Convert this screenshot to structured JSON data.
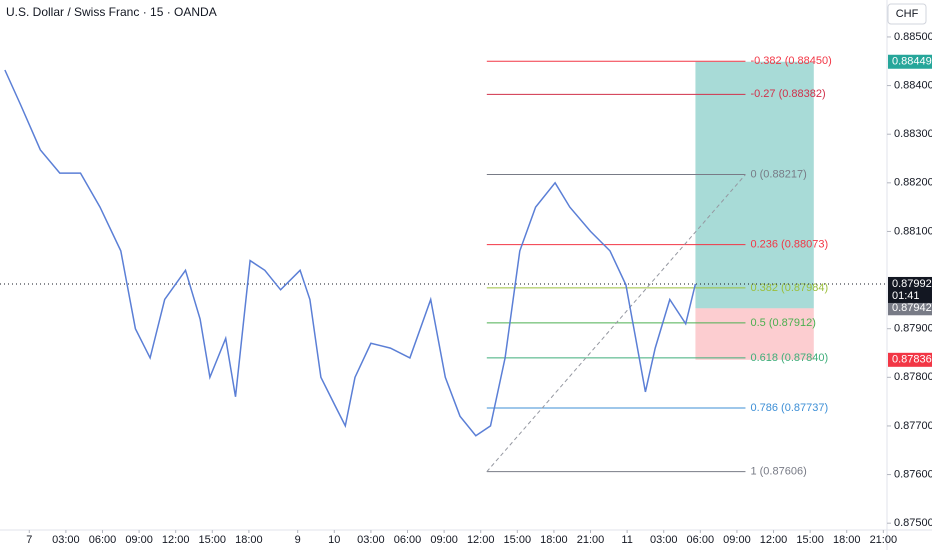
{
  "chart_data": {
    "type": "line",
    "title": "U.S. Dollar / Swiss Franc · 15 · OANDA",
    "currency": "CHF",
    "color": "#5b7fd6",
    "x": [
      -2.0,
      -0.7,
      0.9,
      2.5,
      4.2,
      5.8,
      7.5,
      8.7,
      9.9,
      11.1,
      12.8,
      14.0,
      14.8,
      16.1,
      16.9,
      18.1,
      19.3,
      20.6,
      22.2,
      23.0,
      23.9,
      25.1,
      25.9,
      26.7,
      28.0,
      29.6,
      31.2,
      32.9,
      34.1,
      35.3,
      36.6,
      37.8,
      39.0,
      40.2,
      41.5,
      43.1,
      44.3,
      46.0,
      47.6,
      48.9,
      49.7,
      50.5,
      51.3,
      52.5,
      53.8,
      54.6
    ],
    "values": [
      0.88432,
      0.8836,
      0.88268,
      0.8822,
      0.8822,
      0.8815,
      0.8806,
      0.879,
      0.8784,
      0.8796,
      0.8802,
      0.8792,
      0.878,
      0.8788,
      0.8776,
      0.8804,
      0.8802,
      0.8798,
      0.8802,
      0.8796,
      0.878,
      0.8774,
      0.877,
      0.878,
      0.8787,
      0.8786,
      0.8784,
      0.8796,
      0.878,
      0.8772,
      0.8768,
      0.877,
      0.8784,
      0.8806,
      0.8815,
      0.882,
      0.8815,
      0.881,
      0.8806,
      0.8799,
      0.8788,
      0.8777,
      0.8786,
      0.8796,
      0.8791,
      0.87992
    ],
    "xlim": [
      -2.4,
      70.3
    ],
    "ylim": [
      0.87486,
      0.88576
    ],
    "xticks": [
      {
        "value": 0,
        "label": "7"
      },
      {
        "value": 3,
        "label": "03:00"
      },
      {
        "value": 6,
        "label": "06:00"
      },
      {
        "value": 9,
        "label": "09:00"
      },
      {
        "value": 12,
        "label": "12:00"
      },
      {
        "value": 15,
        "label": "15:00"
      },
      {
        "value": 18,
        "label": "18:00"
      },
      {
        "value": 22,
        "label": "9"
      },
      {
        "value": 25,
        "label": "10"
      },
      {
        "value": 28,
        "label": "03:00"
      },
      {
        "value": 31,
        "label": "06:00"
      },
      {
        "value": 34,
        "label": "09:00"
      },
      {
        "value": 37,
        "label": "12:00"
      },
      {
        "value": 40,
        "label": "15:00"
      },
      {
        "value": 43,
        "label": "18:00"
      },
      {
        "value": 46,
        "label": "21:00"
      },
      {
        "value": 49,
        "label": "11"
      },
      {
        "value": 52,
        "label": "03:00"
      },
      {
        "value": 55,
        "label": "06:00"
      },
      {
        "value": 58,
        "label": "09:00"
      },
      {
        "value": 61,
        "label": "12:00"
      },
      {
        "value": 64,
        "label": "15:00"
      },
      {
        "value": 67,
        "label": "18:00"
      },
      {
        "value": 70,
        "label": "21:00"
      }
    ],
    "yticks": [
      {
        "value": 0.885,
        "label": "0.88500"
      },
      {
        "value": 0.884,
        "label": "0.88400"
      },
      {
        "value": 0.883,
        "label": "0.88300"
      },
      {
        "value": 0.882,
        "label": "0.88200"
      },
      {
        "value": 0.881,
        "label": "0.88100"
      },
      {
        "value": 0.879,
        "label": "0.87900"
      },
      {
        "value": 0.878,
        "label": "0.87800"
      },
      {
        "value": 0.877,
        "label": "0.87700"
      },
      {
        "value": 0.876,
        "label": "0.87600"
      },
      {
        "value": 0.875,
        "label": "0.87500"
      }
    ],
    "fib_x": [
      37.5,
      58.7
    ],
    "fib_levels": [
      {
        "value": 0.8845,
        "label": "-0.382 (0.88450)",
        "color": "#f23645"
      },
      {
        "value": 0.88382,
        "label": "-0.27 (0.88382)",
        "color": "#d1304a"
      },
      {
        "value": 0.88217,
        "label": "0 (0.88217)",
        "color": "#787b86"
      },
      {
        "value": 0.88073,
        "label": "0.236 (0.88073)",
        "color": "#f23645"
      },
      {
        "value": 0.87984,
        "label": "0.382 (0.87984)",
        "color": "#9bbf3c"
      },
      {
        "value": 0.87912,
        "label": "0.5 (0.87912)",
        "color": "#4caf50"
      },
      {
        "value": 0.8784,
        "label": "0.618 (0.87840)",
        "color": "#3fae7a"
      },
      {
        "value": 0.87737,
        "label": "0.786 (0.87737)",
        "color": "#3d8fd6"
      },
      {
        "value": 0.87606,
        "label": "1 (0.87606)",
        "color": "#787b86"
      }
    ],
    "position": {
      "x": [
        54.6,
        64.3
      ],
      "target": 0.88449,
      "entry": 0.87942,
      "stop": 0.87836
    },
    "last_price": 0.87992,
    "countdown": "01:41"
  }
}
